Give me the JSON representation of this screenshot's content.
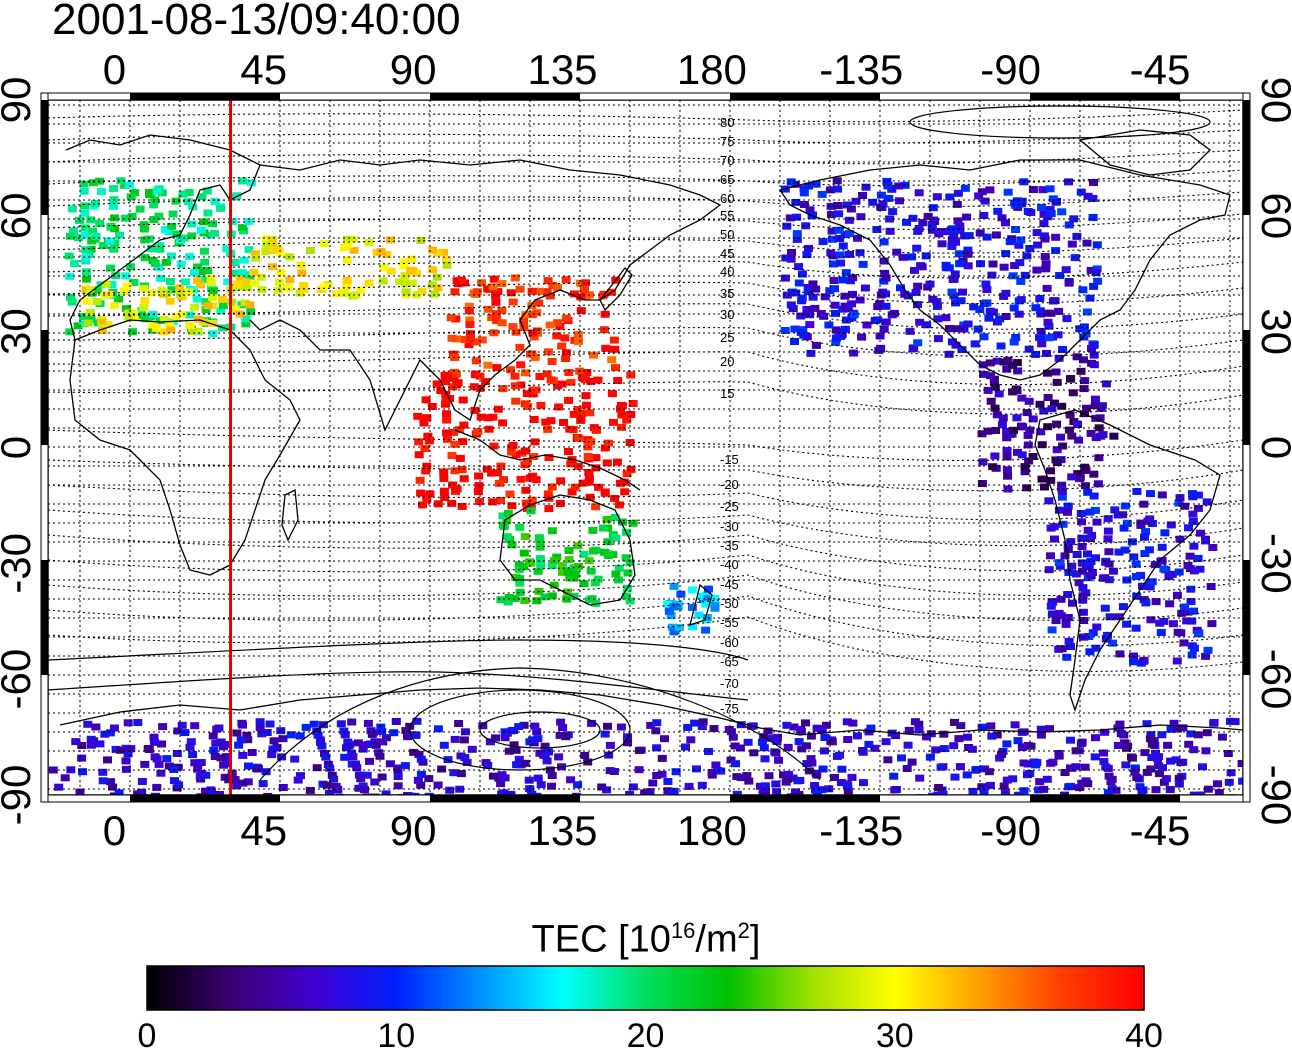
{
  "timestamp": "2001-08-13/09:40:00",
  "map": {
    "lon_ticks_top": [
      "0",
      "45",
      "90",
      "135",
      "180",
      "-135",
      "-90",
      "-45"
    ],
    "lon_ticks_bottom": [
      "0",
      "45",
      "90",
      "135",
      "180",
      "-135",
      "-90",
      "-45"
    ],
    "lat_ticks_left": [
      "90",
      "60",
      "30",
      "0",
      "-30",
      "-60",
      "-90"
    ],
    "lat_ticks_right": [
      "90",
      "60",
      "30",
      "0",
      "-30",
      "-60",
      "-90"
    ],
    "contour_labels": [
      "80",
      "75",
      "70",
      "65",
      "60",
      "55",
      "50",
      "45",
      "40",
      "35",
      "30",
      "25",
      "20",
      "15",
      "-15",
      "-20",
      "-25",
      "-30",
      "-35",
      "-40",
      "-45",
      "-50",
      "-55",
      "-60",
      "-65",
      "-70",
      "-75"
    ],
    "marker_line_color": "#e00000",
    "marker_line_longitude": 35
  },
  "colorbar": {
    "title_main": "TEC  [10",
    "title_sup1": "16",
    "title_mid": "/m",
    "title_sup2": "2",
    "title_end": "]",
    "ticks": [
      "0",
      "10",
      "20",
      "30",
      "40"
    ],
    "range": [
      0,
      40
    ],
    "colors": [
      "#000000",
      "#3a0070",
      "#4000d0",
      "#0020ff",
      "#0090ff",
      "#00ffff",
      "#00e060",
      "#00c000",
      "#a0e000",
      "#ffff00",
      "#ffa000",
      "#ff4000",
      "#ff0000"
    ]
  },
  "chart_data": {
    "type": "heatmap",
    "xlabel": "",
    "ylabel": "",
    "xlim": [
      -20,
      340
    ],
    "ylim": [
      -90,
      90
    ],
    "colorbar_label": "TEC  [10^16/m^2]",
    "colorbar_range": [
      0,
      40
    ],
    "regions": [
      {
        "lon": [
          -15,
          40
        ],
        "lat": [
          30,
          70
        ],
        "tec": 20
      },
      {
        "lon": [
          -10,
          40
        ],
        "lat": [
          30,
          45
        ],
        "tec": 30
      },
      {
        "lon": [
          40,
          100
        ],
        "lat": [
          40,
          55
        ],
        "tec": 30
      },
      {
        "lon": [
          100,
          150
        ],
        "lat": [
          20,
          45
        ],
        "tec": 38
      },
      {
        "lon": [
          90,
          155
        ],
        "lat": [
          -15,
          20
        ],
        "tec": 40
      },
      {
        "lon": [
          115,
          155
        ],
        "lat": [
          -40,
          -15
        ],
        "tec": 22
      },
      {
        "lon": [
          165,
          180
        ],
        "lat": [
          -48,
          -35
        ],
        "tec": 14
      },
      {
        "lon": [
          200,
          295
        ],
        "lat": [
          25,
          70
        ],
        "tec": 8
      },
      {
        "lon": [
          260,
          300
        ],
        "lat": [
          -10,
          25
        ],
        "tec": 5
      },
      {
        "lon": [
          280,
          330
        ],
        "lat": [
          -55,
          -10
        ],
        "tec": 8
      },
      {
        "lon": [
          -20,
          340
        ],
        "lat": [
          -90,
          -70
        ],
        "tec": 7
      }
    ]
  }
}
